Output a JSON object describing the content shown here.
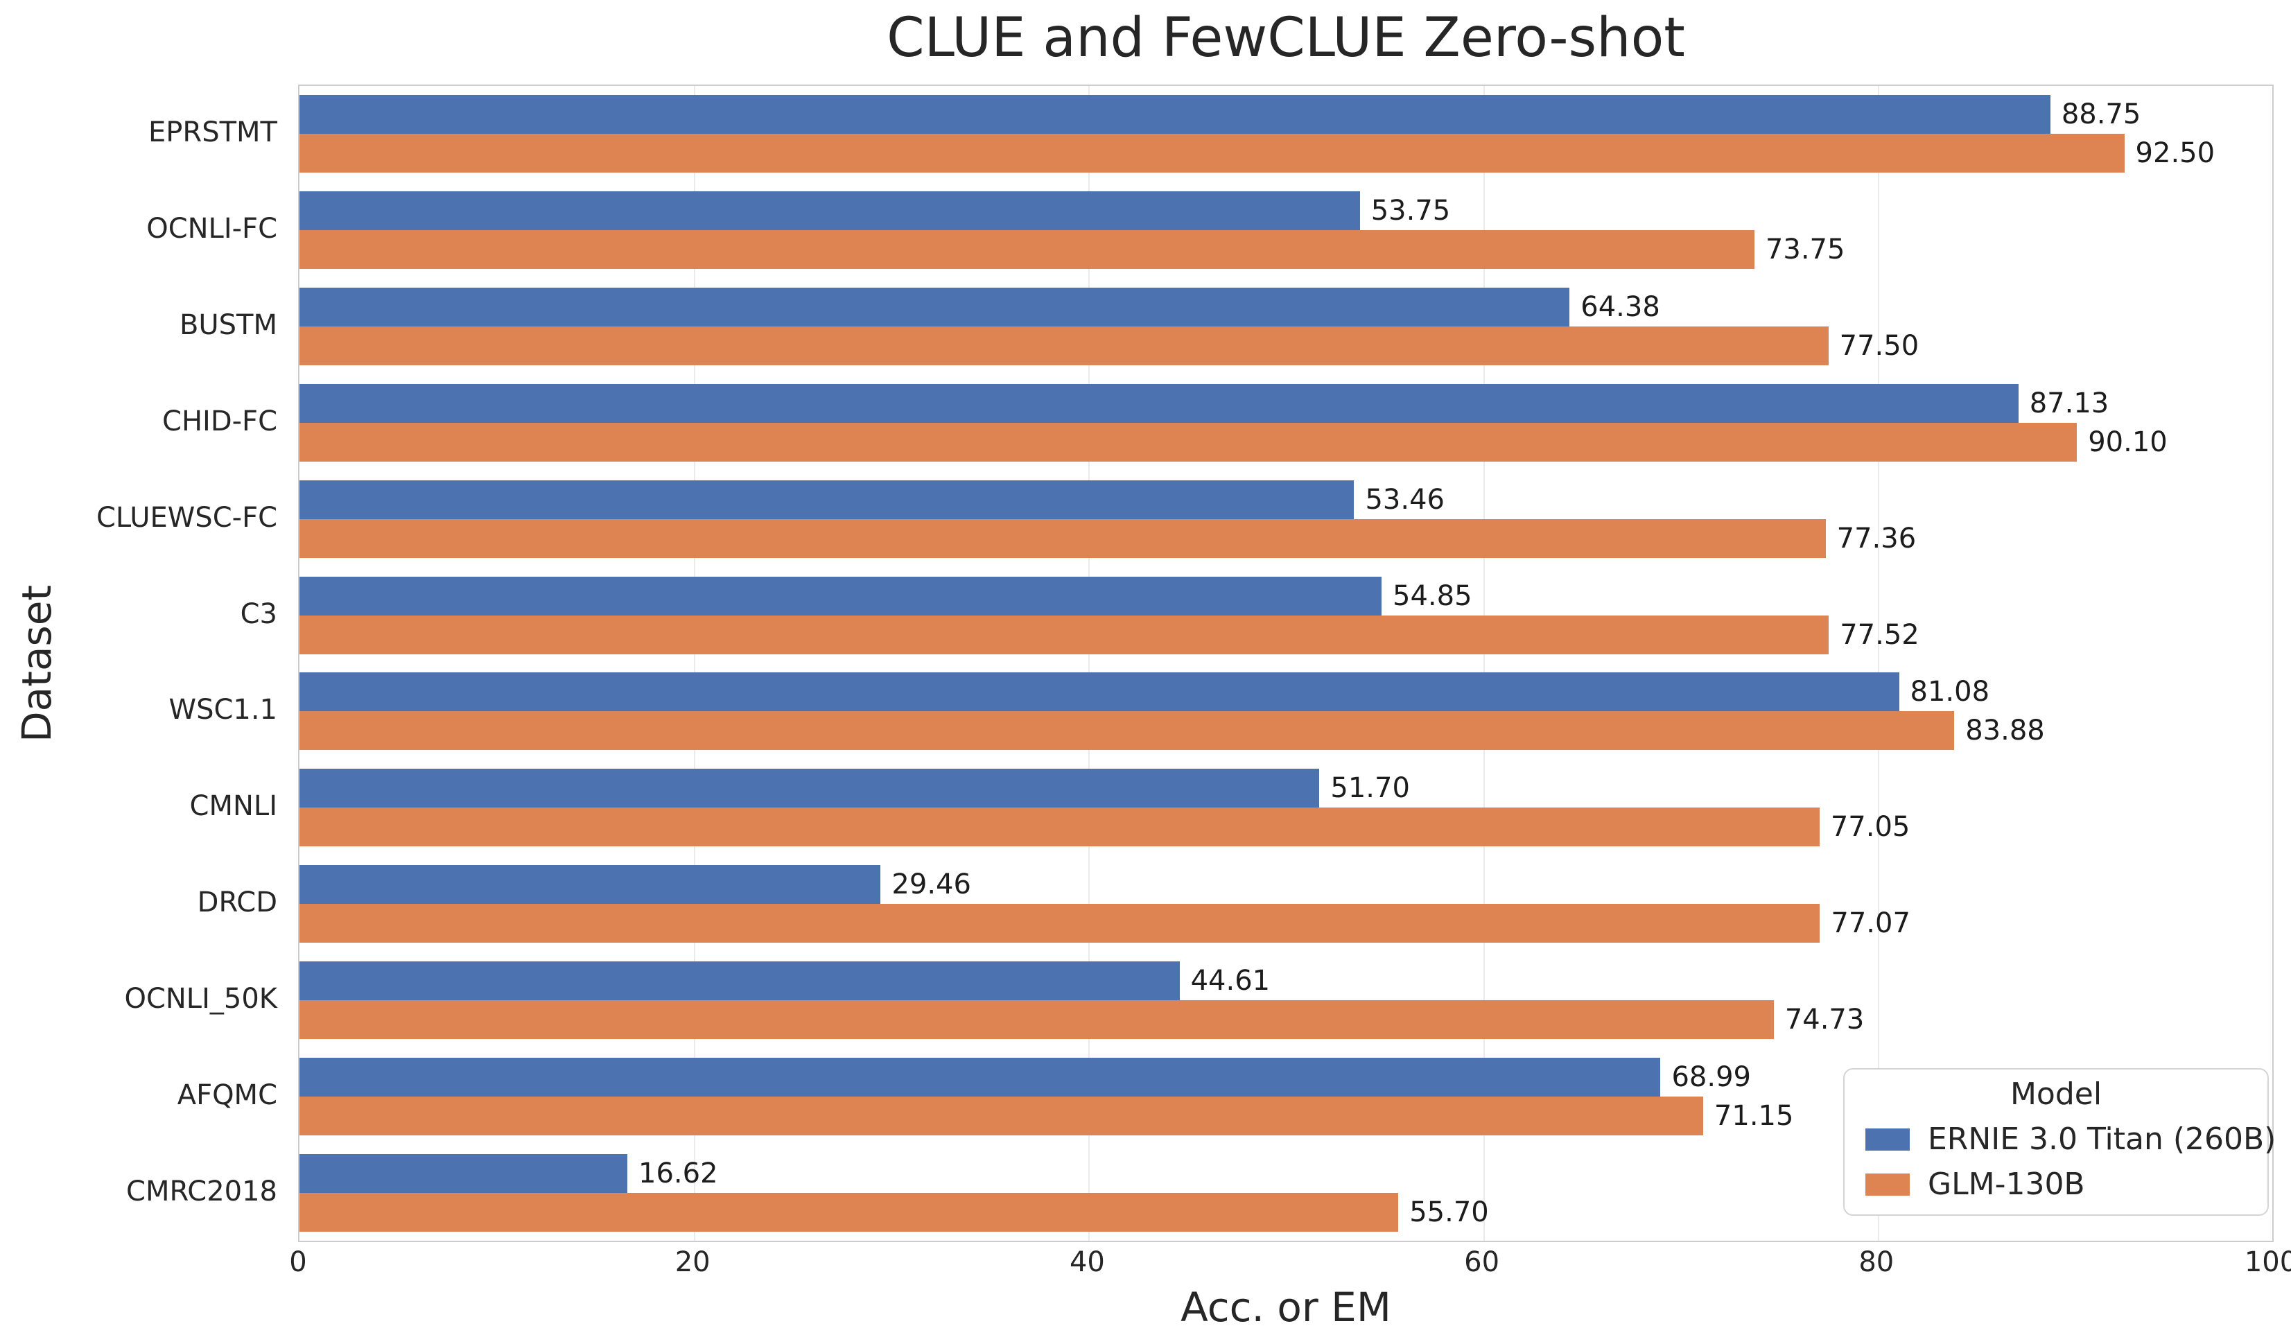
{
  "chart_data": {
    "type": "bar",
    "orientation": "horizontal",
    "title": "CLUE and FewCLUE Zero-shot",
    "xlabel": "Acc. or EM",
    "ylabel": "Dataset",
    "xlim": [
      0,
      100
    ],
    "xticks": [
      0,
      20,
      40,
      60,
      80,
      100
    ],
    "grid": true,
    "grid_axis": "x",
    "value_label_format": "2 decimal places",
    "categories": [
      "EPRSTMT",
      "OCNLI-FC",
      "BUSTM",
      "CHID-FC",
      "CLUEWSC-FC",
      "C3",
      "WSC1.1",
      "CMNLI",
      "DRCD",
      "OCNLI_50K",
      "AFQMC",
      "CMRC2018"
    ],
    "series": [
      {
        "name": "ERNIE 3.0 Titan (260B)",
        "color": "#4C72B0",
        "values": [
          88.75,
          53.75,
          64.38,
          87.13,
          53.46,
          54.85,
          81.08,
          51.7,
          29.46,
          44.61,
          68.99,
          16.62
        ]
      },
      {
        "name": "GLM-130B",
        "color": "#DD8452",
        "values": [
          92.5,
          73.75,
          77.5,
          90.1,
          77.36,
          77.52,
          83.88,
          77.05,
          77.07,
          74.73,
          71.15,
          55.7
        ]
      }
    ],
    "legend": {
      "title": "Model",
      "position": "lower right"
    },
    "colors": {
      "background": "#ffffff",
      "spine": "#cccccc",
      "gridline": "#ebebeb",
      "text": "#262626"
    }
  }
}
